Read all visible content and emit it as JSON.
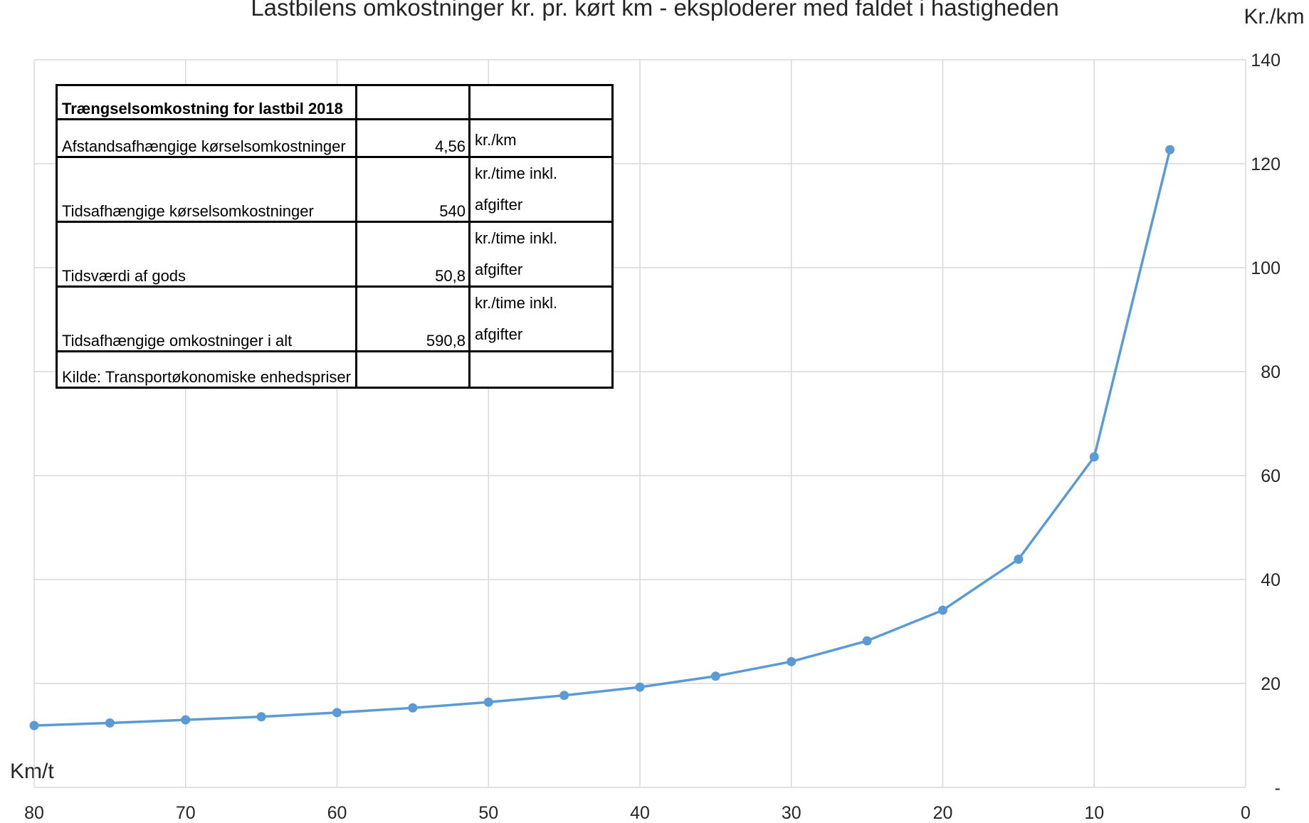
{
  "chart_data": {
    "type": "line",
    "title": "Lastbilens omkostninger kr. pr. kørt km - eksploderer med faldet i hastigheden",
    "xlabel": "Km/t",
    "ylabel": "Kr./km",
    "x_axis_reversed": true,
    "y_axis_position": "right",
    "xlim": [
      0,
      80
    ],
    "ylim": [
      0,
      140
    ],
    "x_ticks": [
      "80",
      "70",
      "60",
      "50",
      "40",
      "30",
      "20",
      "10",
      "0"
    ],
    "y_ticks": [
      "-",
      "20",
      "40",
      "60",
      "80",
      "100",
      "120",
      "140"
    ],
    "grid": true,
    "line_color": "#5b9bd5",
    "series": [
      {
        "x": [
          80,
          75,
          70,
          65,
          60,
          55,
          50,
          45,
          40,
          35,
          30,
          25,
          20,
          15,
          10,
          5
        ],
        "y": [
          11.9,
          12.4,
          13.0,
          13.6,
          14.4,
          15.3,
          16.4,
          17.7,
          19.3,
          21.4,
          24.2,
          28.2,
          34.1,
          43.9,
          63.6,
          122.7
        ]
      }
    ]
  },
  "table": {
    "title": "Trængselsomkostning for lastbil 2018",
    "rows": [
      {
        "label": "Afstandsafhængige kørselsomkostninger",
        "value": "4,56",
        "unit": "kr./km"
      },
      {
        "label": "Tidsafhængige kørselsomkostninger",
        "value": "540",
        "unit": "kr./time inkl. afgifter"
      },
      {
        "label": "Tidsværdi af gods",
        "value": "50,8",
        "unit": "kr./time inkl. afgifter"
      },
      {
        "label": "Tidsafhængige omkostninger i alt",
        "value": "590,8",
        "unit": "kr./time inkl. afgifter"
      }
    ],
    "source": "Kilde: Transportøkonomiske enhedspriser"
  }
}
